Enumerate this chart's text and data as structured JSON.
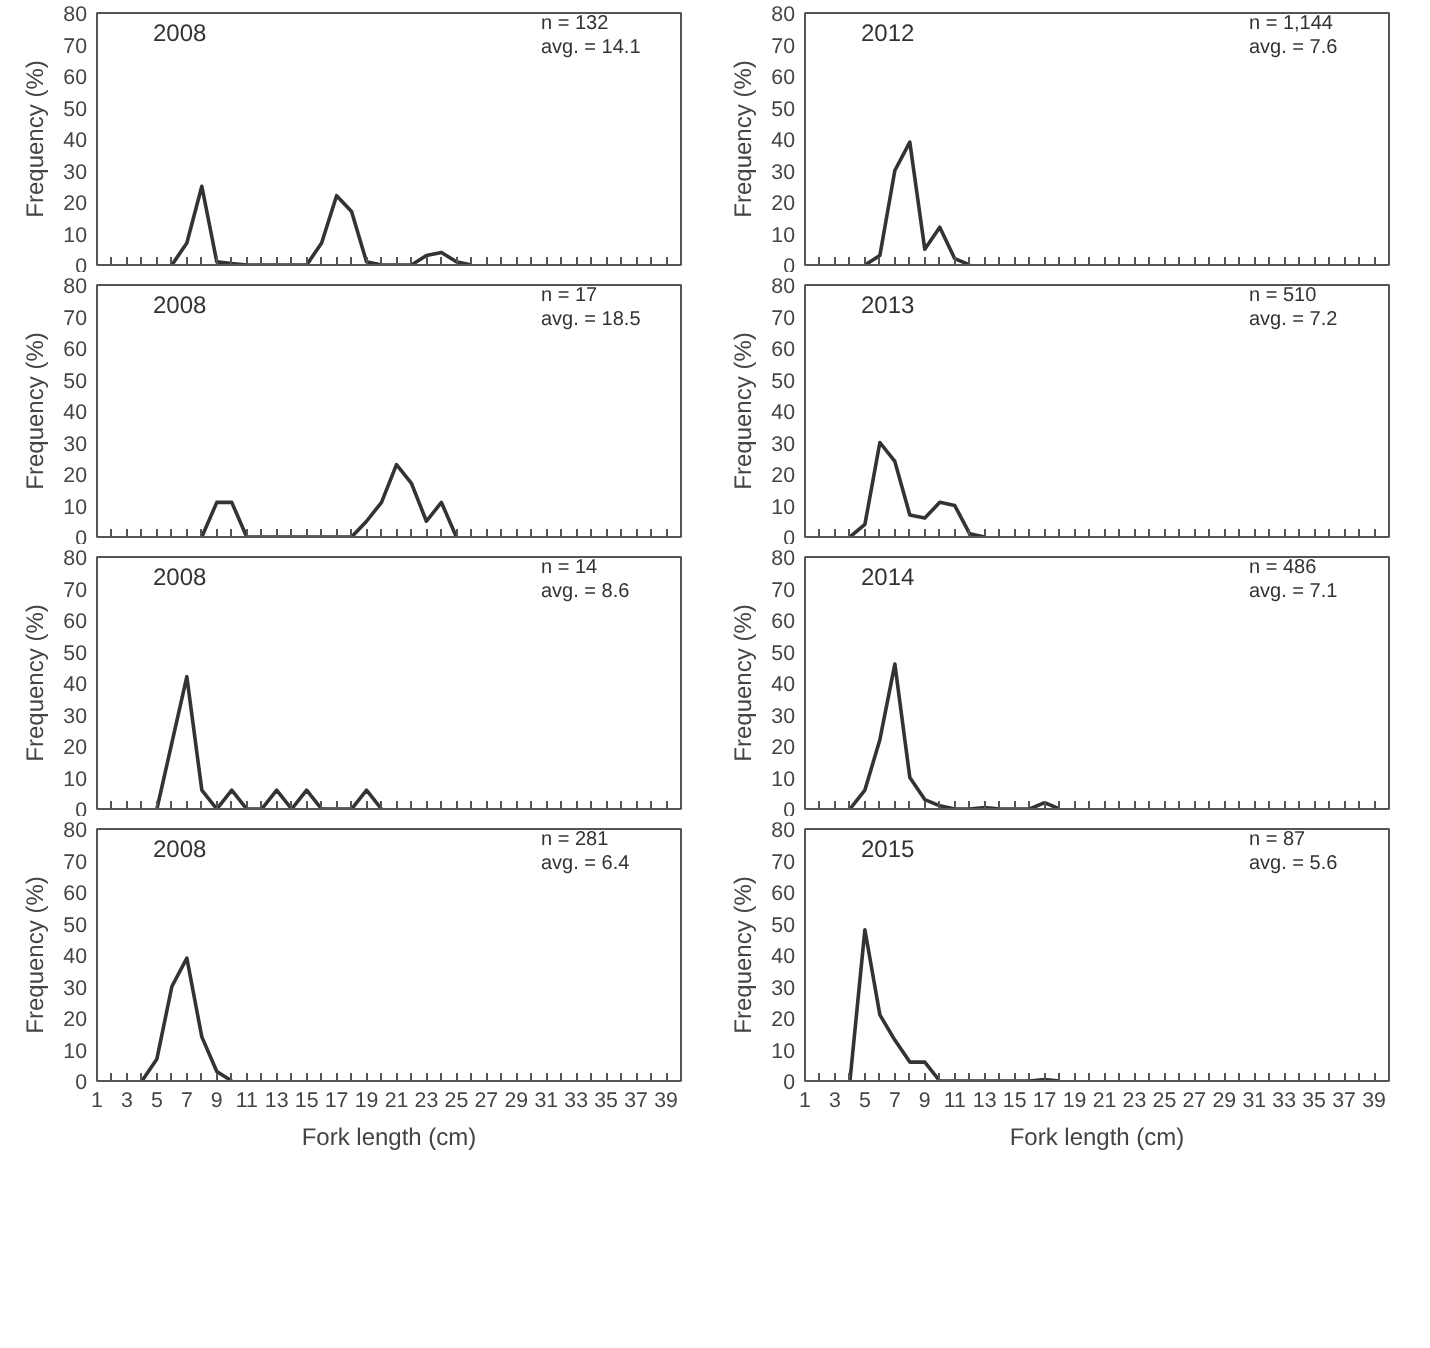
{
  "chart_data": [
    {
      "type": "line",
      "title": "2008",
      "annotations": [
        "n = 132",
        "avg. = 14.1"
      ],
      "ylabel": "Frequency (%)",
      "x": [
        6,
        7,
        8,
        9,
        10,
        11,
        12,
        13,
        14,
        15,
        16,
        17,
        18,
        19,
        20,
        21,
        22,
        23,
        24,
        25,
        26
      ],
      "series": [
        {
          "color": "#333333",
          "values": [
            0,
            7,
            25,
            1,
            0.5,
            0,
            0,
            0,
            0,
            0,
            7,
            22,
            17,
            1,
            0,
            0,
            0,
            3,
            4,
            1,
            0
          ]
        }
      ],
      "xlim": [
        1,
        40
      ],
      "ylim": [
        0,
        80
      ],
      "yticks": [
        0,
        10,
        20,
        30,
        40,
        50,
        60,
        70,
        80
      ],
      "tick_labels": "y",
      "grid": false,
      "marker": "none",
      "line_style": "solid"
    },
    {
      "type": "line",
      "title": "2012",
      "annotations": [
        "n = 1,144",
        "avg. = 7.6"
      ],
      "ylabel": "Frequency (%)",
      "x": [
        5,
        6,
        7,
        8,
        9,
        10,
        11,
        12
      ],
      "series": [
        {
          "color": "#333333",
          "values": [
            0,
            3,
            30,
            39,
            5,
            12,
            2,
            0
          ]
        }
      ],
      "xlim": [
        1,
        40
      ],
      "ylim": [
        0,
        80
      ],
      "yticks": [
        0,
        10,
        20,
        30,
        40,
        50,
        60,
        70,
        80
      ],
      "tick_labels": "y",
      "grid": false,
      "marker": "none",
      "line_style": "solid"
    },
    {
      "type": "line",
      "title": "2008",
      "annotations": [
        "n = 17",
        "avg. = 18.5"
      ],
      "ylabel": "Frequency (%)",
      "x": [
        8,
        9,
        10,
        11,
        12,
        13,
        14,
        15,
        16,
        17,
        18,
        19,
        20,
        21,
        22,
        23,
        24,
        25
      ],
      "series": [
        {
          "color": "#333333",
          "values": [
            0,
            11,
            11,
            0,
            0,
            0,
            0,
            0,
            0,
            0,
            0,
            5,
            11,
            23,
            17,
            5,
            11,
            0
          ]
        }
      ],
      "xlim": [
        1,
        40
      ],
      "ylim": [
        0,
        80
      ],
      "yticks": [
        0,
        10,
        20,
        30,
        40,
        50,
        60,
        70,
        80
      ],
      "tick_labels": "y",
      "grid": false,
      "marker": "none",
      "line_style": "solid"
    },
    {
      "type": "line",
      "title": "2013",
      "annotations": [
        "n = 510",
        "avg. = 7.2"
      ],
      "ylabel": "Frequency (%)",
      "x": [
        4,
        5,
        6,
        7,
        8,
        9,
        10,
        11,
        12,
        13
      ],
      "series": [
        {
          "color": "#333333",
          "values": [
            0,
            4,
            30,
            24,
            7,
            6,
            11,
            10,
            1,
            0
          ]
        }
      ],
      "xlim": [
        1,
        40
      ],
      "ylim": [
        0,
        80
      ],
      "yticks": [
        0,
        10,
        20,
        30,
        40,
        50,
        60,
        70,
        80
      ],
      "tick_labels": "y",
      "grid": false,
      "marker": "none",
      "line_style": "solid"
    },
    {
      "type": "line",
      "title": "2008",
      "annotations": [
        "n = 14",
        "avg. = 8.6"
      ],
      "ylabel": "Frequency (%)",
      "x": [
        5,
        6,
        7,
        8,
        9,
        10,
        11,
        12,
        13,
        14,
        15,
        16,
        17,
        18,
        19,
        20
      ],
      "series": [
        {
          "color": "#333333",
          "values": [
            0,
            21,
            42,
            6,
            0,
            6,
            0,
            0,
            6,
            0,
            6,
            0,
            0,
            0,
            6,
            0
          ]
        }
      ],
      "xlim": [
        1,
        40
      ],
      "ylim": [
        0,
        80
      ],
      "yticks": [
        0,
        10,
        20,
        30,
        40,
        50,
        60,
        70,
        80
      ],
      "tick_labels": "y",
      "grid": false,
      "marker": "none",
      "line_style": "solid"
    },
    {
      "type": "line",
      "title": "2014",
      "annotations": [
        "n = 486",
        "avg. = 7.1"
      ],
      "ylabel": "Frequency (%)",
      "x": [
        4,
        5,
        6,
        7,
        8,
        9,
        10,
        11,
        12,
        13,
        14,
        15,
        16,
        17,
        18
      ],
      "series": [
        {
          "color": "#333333",
          "values": [
            0,
            6,
            22,
            46,
            10,
            3,
            1,
            0,
            0,
            0.5,
            0,
            0,
            0,
            2,
            0
          ]
        }
      ],
      "xlim": [
        1,
        40
      ],
      "ylim": [
        0,
        80
      ],
      "yticks": [
        0,
        10,
        20,
        30,
        40,
        50,
        60,
        70,
        80
      ],
      "tick_labels": "y",
      "grid": false,
      "marker": "none",
      "line_style": "solid"
    },
    {
      "type": "line",
      "title": "2008",
      "annotations": [
        "n = 281",
        "avg. = 6.4"
      ],
      "ylabel": "Frequency (%)",
      "xlabel": "Fork length (cm)",
      "x": [
        4,
        5,
        6,
        7,
        8,
        9,
        10
      ],
      "series": [
        {
          "color": "#333333",
          "values": [
            0,
            7,
            30,
            39,
            14,
            3,
            0
          ]
        }
      ],
      "xlim": [
        1,
        40
      ],
      "ylim": [
        0,
        80
      ],
      "yticks": [
        0,
        10,
        20,
        30,
        40,
        50,
        60,
        70,
        80
      ],
      "xticks": [
        1,
        {
          "value": 2,
          "label": null
        },
        3,
        {
          "value": 4,
          "label": null
        },
        5,
        {
          "value": 6,
          "label": null
        },
        7,
        {
          "value": 8,
          "label": null
        },
        9,
        {
          "value": 10,
          "label": null
        },
        11,
        {
          "value": 12,
          "label": null
        },
        13,
        {
          "value": 14,
          "label": null
        },
        15,
        {
          "value": 16,
          "label": null
        },
        17,
        {
          "value": 18,
          "label": null
        },
        19,
        {
          "value": 20,
          "label": null
        },
        21,
        {
          "value": 22,
          "label": null
        },
        23,
        {
          "value": 24,
          "label": null
        },
        25,
        {
          "value": 26,
          "label": null
        },
        27,
        {
          "value": 28,
          "label": null
        },
        29,
        {
          "value": 30,
          "label": null
        },
        31,
        {
          "value": 32,
          "label": null
        },
        33,
        {
          "value": 34,
          "label": null
        },
        35,
        {
          "value": 36,
          "label": null
        },
        37,
        {
          "value": 38,
          "label": null
        },
        39,
        {
          "value": 40,
          "label": null
        }
      ],
      "grid": false,
      "marker": "none",
      "line_style": "solid"
    },
    {
      "type": "line",
      "title": "2015",
      "annotations": [
        "n = 87",
        "avg. = 5.6"
      ],
      "ylabel": "Frequency (%)",
      "xlabel": "Fork length (cm)",
      "x": [
        4,
        5,
        6,
        7,
        8,
        9,
        10,
        16,
        17,
        18
      ],
      "series": [
        {
          "color": "#333333",
          "values": [
            0,
            48,
            21,
            13,
            6,
            6,
            0,
            0,
            0.5,
            0
          ]
        }
      ],
      "xlim": [
        1,
        40
      ],
      "ylim": [
        0,
        80
      ],
      "yticks": [
        0,
        10,
        20,
        30,
        40,
        50,
        60,
        70,
        80
      ],
      "xticks": [
        1,
        {
          "value": 2,
          "label": null
        },
        3,
        {
          "value": 4,
          "label": null
        },
        5,
        {
          "value": 6,
          "label": null
        },
        7,
        {
          "value": 8,
          "label": null
        },
        9,
        {
          "value": 10,
          "label": null
        },
        11,
        {
          "value": 12,
          "label": null
        },
        13,
        {
          "value": 14,
          "label": null
        },
        15,
        {
          "value": 16,
          "label": null
        },
        17,
        {
          "value": 18,
          "label": null
        },
        19,
        {
          "value": 20,
          "label": null
        },
        21,
        {
          "value": 22,
          "label": null
        },
        23,
        {
          "value": 24,
          "label": null
        },
        25,
        {
          "value": 26,
          "label": null
        },
        27,
        {
          "value": 28,
          "label": null
        },
        29,
        {
          "value": 30,
          "label": null
        },
        31,
        {
          "value": 32,
          "label": null
        },
        33,
        {
          "value": 34,
          "label": null
        },
        35,
        {
          "value": 36,
          "label": null
        },
        37,
        {
          "value": 38,
          "label": null
        },
        39,
        {
          "value": 40,
          "label": null
        }
      ],
      "grid": false,
      "marker": "none",
      "line_style": "solid"
    }
  ]
}
